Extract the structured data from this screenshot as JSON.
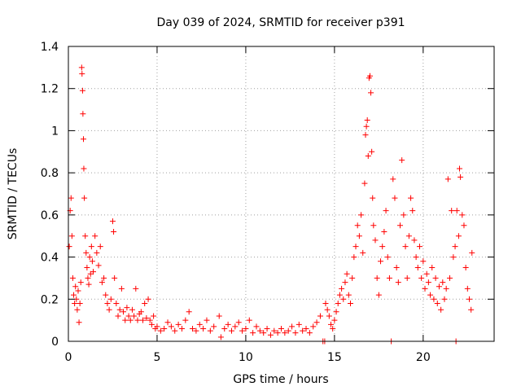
{
  "chart_data": {
    "type": "scatter",
    "title": "Day 039 of 2024, SRMTID for receiver p391",
    "xlabel": "GPS time / hours",
    "ylabel": "SRMTID / TECUs",
    "xlim": [
      0,
      24
    ],
    "ylim": [
      0,
      1.4
    ],
    "x_ticks": [
      0,
      5,
      10,
      15,
      20
    ],
    "y_ticks": [
      0,
      0.2,
      0.4,
      0.6,
      0.8,
      1,
      1.2,
      1.4
    ],
    "x_tick_labels": [
      "0",
      "5",
      "10",
      "15",
      "20"
    ],
    "y_tick_labels": [
      "0",
      "0.2",
      "0.4",
      "0.6",
      "0.8",
      "1",
      "1.2",
      "1.4"
    ],
    "grid": true,
    "marker": "+",
    "marker_color": "#ff0000",
    "series": [
      {
        "name": "SRMTID",
        "points": [
          [
            0.05,
            0.45
          ],
          [
            0.1,
            0.62
          ],
          [
            0.15,
            0.68
          ],
          [
            0.2,
            0.5
          ],
          [
            0.25,
            0.3
          ],
          [
            0.3,
            0.22
          ],
          [
            0.35,
            0.18
          ],
          [
            0.4,
            0.26
          ],
          [
            0.45,
            0.2
          ],
          [
            0.5,
            0.15
          ],
          [
            0.55,
            0.24
          ],
          [
            0.6,
            0.09
          ],
          [
            0.65,
            0.18
          ],
          [
            0.7,
            0.28
          ],
          [
            0.75,
            1.3
          ],
          [
            0.77,
            1.27
          ],
          [
            0.8,
            1.19
          ],
          [
            0.82,
            1.08
          ],
          [
            0.85,
            0.96
          ],
          [
            0.87,
            0.82
          ],
          [
            0.9,
            0.68
          ],
          [
            0.95,
            0.5
          ],
          [
            1.0,
            0.42
          ],
          [
            1.05,
            0.35
          ],
          [
            1.1,
            0.3
          ],
          [
            1.15,
            0.27
          ],
          [
            1.2,
            0.4
          ],
          [
            1.25,
            0.32
          ],
          [
            1.3,
            0.45
          ],
          [
            1.35,
            0.38
          ],
          [
            1.4,
            0.33
          ],
          [
            1.5,
            0.5
          ],
          [
            1.6,
            0.42
          ],
          [
            1.7,
            0.36
          ],
          [
            1.8,
            0.45
          ],
          [
            1.9,
            0.28
          ],
          [
            2.0,
            0.3
          ],
          [
            2.1,
            0.22
          ],
          [
            2.2,
            0.18
          ],
          [
            2.3,
            0.15
          ],
          [
            2.4,
            0.2
          ],
          [
            2.5,
            0.57
          ],
          [
            2.55,
            0.52
          ],
          [
            2.6,
            0.3
          ],
          [
            2.7,
            0.18
          ],
          [
            2.8,
            0.12
          ],
          [
            2.9,
            0.15
          ],
          [
            3.0,
            0.25
          ],
          [
            3.1,
            0.14
          ],
          [
            3.2,
            0.1
          ],
          [
            3.3,
            0.16
          ],
          [
            3.4,
            0.12
          ],
          [
            3.5,
            0.1
          ],
          [
            3.6,
            0.15
          ],
          [
            3.7,
            0.12
          ],
          [
            3.8,
            0.25
          ],
          [
            3.9,
            0.1
          ],
          [
            4.0,
            0.13
          ],
          [
            4.1,
            0.14
          ],
          [
            4.2,
            0.1
          ],
          [
            4.3,
            0.18
          ],
          [
            4.4,
            0.11
          ],
          [
            4.5,
            0.2
          ],
          [
            4.6,
            0.1
          ],
          [
            4.7,
            0.08
          ],
          [
            4.8,
            0.12
          ],
          [
            4.9,
            0.06
          ],
          [
            5.0,
            0.07
          ],
          [
            5.2,
            0.05
          ],
          [
            5.4,
            0.06
          ],
          [
            5.6,
            0.09
          ],
          [
            5.8,
            0.07
          ],
          [
            6.0,
            0.05
          ],
          [
            6.2,
            0.08
          ],
          [
            6.4,
            0.06
          ],
          [
            6.6,
            0.1
          ],
          [
            6.8,
            0.14
          ],
          [
            7.0,
            0.06
          ],
          [
            7.2,
            0.05
          ],
          [
            7.4,
            0.08
          ],
          [
            7.6,
            0.06
          ],
          [
            7.8,
            0.1
          ],
          [
            8.0,
            0.05
          ],
          [
            8.2,
            0.07
          ],
          [
            8.5,
            0.12
          ],
          [
            8.6,
            0.02
          ],
          [
            8.8,
            0.06
          ],
          [
            9.0,
            0.08
          ],
          [
            9.2,
            0.05
          ],
          [
            9.4,
            0.07
          ],
          [
            9.6,
            0.09
          ],
          [
            9.8,
            0.05
          ],
          [
            10.0,
            0.06
          ],
          [
            10.2,
            0.1
          ],
          [
            10.4,
            0.04
          ],
          [
            10.6,
            0.07
          ],
          [
            10.8,
            0.05
          ],
          [
            11.0,
            0.04
          ],
          [
            11.2,
            0.06
          ],
          [
            11.4,
            0.03
          ],
          [
            11.6,
            0.05
          ],
          [
            11.8,
            0.04
          ],
          [
            12.0,
            0.06
          ],
          [
            12.2,
            0.04
          ],
          [
            12.4,
            0.05
          ],
          [
            12.6,
            0.07
          ],
          [
            12.8,
            0.04
          ],
          [
            13.0,
            0.08
          ],
          [
            13.2,
            0.05
          ],
          [
            13.4,
            0.06
          ],
          [
            13.6,
            0.04
          ],
          [
            13.8,
            0.07
          ],
          [
            14.0,
            0.09
          ],
          [
            14.2,
            0.12
          ],
          [
            14.35,
            0.0
          ],
          [
            14.45,
            0.0
          ],
          [
            14.5,
            0.18
          ],
          [
            14.6,
            0.15
          ],
          [
            14.7,
            0.12
          ],
          [
            14.8,
            0.08
          ],
          [
            14.9,
            0.06
          ],
          [
            15.0,
            0.1
          ],
          [
            15.1,
            0.14
          ],
          [
            15.2,
            0.18
          ],
          [
            15.3,
            0.22
          ],
          [
            15.4,
            0.25
          ],
          [
            15.5,
            0.2
          ],
          [
            15.6,
            0.28
          ],
          [
            15.7,
            0.32
          ],
          [
            15.8,
            0.22
          ],
          [
            15.9,
            0.18
          ],
          [
            16.0,
            0.3
          ],
          [
            16.1,
            0.4
          ],
          [
            16.2,
            0.45
          ],
          [
            16.3,
            0.55
          ],
          [
            16.4,
            0.5
          ],
          [
            16.5,
            0.6
          ],
          [
            16.6,
            0.42
          ],
          [
            16.7,
            0.75
          ],
          [
            16.75,
            0.98
          ],
          [
            16.8,
            1.02
          ],
          [
            16.85,
            1.05
          ],
          [
            16.9,
            0.88
          ],
          [
            16.95,
            1.25
          ],
          [
            17.0,
            1.26
          ],
          [
            17.05,
            1.18
          ],
          [
            17.1,
            0.9
          ],
          [
            17.15,
            0.68
          ],
          [
            17.2,
            0.55
          ],
          [
            17.3,
            0.48
          ],
          [
            17.4,
            0.3
          ],
          [
            17.5,
            0.22
          ],
          [
            17.6,
            0.38
          ],
          [
            17.7,
            0.45
          ],
          [
            17.8,
            0.52
          ],
          [
            17.9,
            0.62
          ],
          [
            18.0,
            0.4
          ],
          [
            18.1,
            0.3
          ],
          [
            18.2,
            0.0
          ],
          [
            18.3,
            0.77
          ],
          [
            18.4,
            0.68
          ],
          [
            18.5,
            0.35
          ],
          [
            18.6,
            0.28
          ],
          [
            18.7,
            0.55
          ],
          [
            18.8,
            0.86
          ],
          [
            18.9,
            0.6
          ],
          [
            19.0,
            0.45
          ],
          [
            19.1,
            0.3
          ],
          [
            19.2,
            0.5
          ],
          [
            19.3,
            0.68
          ],
          [
            19.4,
            0.62
          ],
          [
            19.5,
            0.48
          ],
          [
            19.6,
            0.4
          ],
          [
            19.7,
            0.35
          ],
          [
            19.8,
            0.45
          ],
          [
            19.9,
            0.3
          ],
          [
            20.0,
            0.38
          ],
          [
            20.1,
            0.25
          ],
          [
            20.2,
            0.32
          ],
          [
            20.3,
            0.28
          ],
          [
            20.4,
            0.22
          ],
          [
            20.5,
            0.35
          ],
          [
            20.6,
            0.2
          ],
          [
            20.7,
            0.3
          ],
          [
            20.8,
            0.18
          ],
          [
            20.9,
            0.26
          ],
          [
            21.0,
            0.15
          ],
          [
            21.1,
            0.28
          ],
          [
            21.2,
            0.2
          ],
          [
            21.3,
            0.25
          ],
          [
            21.4,
            0.77
          ],
          [
            21.5,
            0.3
          ],
          [
            21.6,
            0.62
          ],
          [
            21.7,
            0.4
          ],
          [
            21.8,
            0.45
          ],
          [
            21.85,
            0.0
          ],
          [
            21.9,
            0.62
          ],
          [
            22.0,
            0.5
          ],
          [
            22.05,
            0.82
          ],
          [
            22.1,
            0.78
          ],
          [
            22.2,
            0.6
          ],
          [
            22.3,
            0.55
          ],
          [
            22.4,
            0.35
          ],
          [
            22.5,
            0.25
          ],
          [
            22.6,
            0.2
          ],
          [
            22.7,
            0.15
          ],
          [
            22.75,
            0.42
          ]
        ]
      }
    ]
  }
}
